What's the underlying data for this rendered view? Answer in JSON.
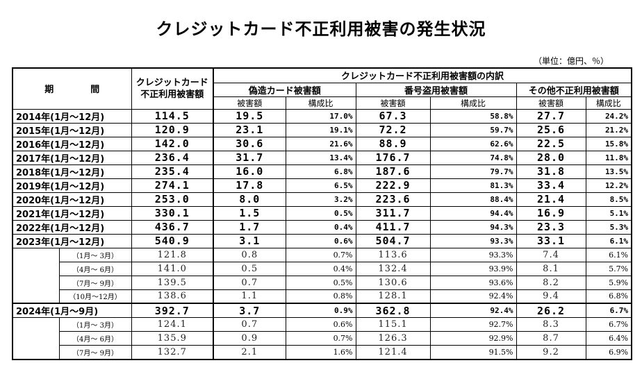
{
  "title": "クレジットカード不正利用被害の発生状況",
  "unit_note": "（単位：億円、％）",
  "headers": {
    "period": "期　間",
    "total": "クレジットカード不正利用被害額",
    "breakdown": "クレジットカード不正利用被害額の内訳",
    "forged": "偽造カード被害額",
    "number_theft": "番号盗用被害額",
    "other": "その他不正利用被害額",
    "damage": "被害額",
    "ratio": "構成比"
  },
  "rows": [
    {
      "type": "year",
      "period": "2014年(1月～12月)",
      "total": "114.5",
      "forged": "19.5",
      "forged_pct": "17.0%",
      "theft": "67.3",
      "theft_pct": "58.8%",
      "other": "27.7",
      "other_pct": "24.2%"
    },
    {
      "type": "year",
      "period": "2015年(1月～12月)",
      "total": "120.9",
      "forged": "23.1",
      "forged_pct": "19.1%",
      "theft": "72.2",
      "theft_pct": "59.7%",
      "other": "25.6",
      "other_pct": "21.2%"
    },
    {
      "type": "year",
      "period": "2016年(1月～12月)",
      "total": "142.0",
      "forged": "30.6",
      "forged_pct": "21.6%",
      "theft": "88.9",
      "theft_pct": "62.6%",
      "other": "22.5",
      "other_pct": "15.8%"
    },
    {
      "type": "year",
      "period": "2017年(1月～12月)",
      "total": "236.4",
      "forged": "31.7",
      "forged_pct": "13.4%",
      "theft": "176.7",
      "theft_pct": "74.8%",
      "other": "28.0",
      "other_pct": "11.8%"
    },
    {
      "type": "year",
      "period": "2018年(1月～12月)",
      "total": "235.4",
      "forged": "16.0",
      "forged_pct": "6.8%",
      "theft": "187.6",
      "theft_pct": "79.7%",
      "other": "31.8",
      "other_pct": "13.5%"
    },
    {
      "type": "year",
      "period": "2019年(1月～12月)",
      "total": "274.1",
      "forged": "17.8",
      "forged_pct": "6.5%",
      "theft": "222.9",
      "theft_pct": "81.3%",
      "other": "33.4",
      "other_pct": "12.2%"
    },
    {
      "type": "year",
      "period": "2020年(1月～12月)",
      "total": "253.0",
      "forged": "8.0",
      "forged_pct": "3.2%",
      "theft": "223.6",
      "theft_pct": "88.4%",
      "other": "21.4",
      "other_pct": "8.5%"
    },
    {
      "type": "year",
      "period": "2021年(1月～12月)",
      "total": "330.1",
      "forged": "1.5",
      "forged_pct": "0.5%",
      "theft": "311.7",
      "theft_pct": "94.4%",
      "other": "16.9",
      "other_pct": "5.1%"
    },
    {
      "type": "year",
      "period": "2022年(1月～12月)",
      "total": "436.7",
      "forged": "1.7",
      "forged_pct": "0.4%",
      "theft": "411.7",
      "theft_pct": "94.3%",
      "other": "23.3",
      "other_pct": "5.3%"
    },
    {
      "type": "year",
      "period": "2023年(1月～12月)",
      "total": "540.9",
      "forged": "3.1",
      "forged_pct": "0.6%",
      "theft": "504.7",
      "theft_pct": "93.3%",
      "other": "33.1",
      "other_pct": "6.1%"
    },
    {
      "type": "quarter",
      "period": "（1月～ 3月）",
      "total": "121.8",
      "forged": "0.8",
      "forged_pct": "0.7%",
      "theft": "113.6",
      "theft_pct": "93.3%",
      "other": "7.4",
      "other_pct": "6.1%"
    },
    {
      "type": "quarter",
      "period": "（4月～ 6月）",
      "total": "141.0",
      "forged": "0.5",
      "forged_pct": "0.4%",
      "theft": "132.4",
      "theft_pct": "93.9%",
      "other": "8.1",
      "other_pct": "5.7%"
    },
    {
      "type": "quarter",
      "period": "（7月～ 9月）",
      "total": "139.5",
      "forged": "0.7",
      "forged_pct": "0.5%",
      "theft": "130.6",
      "theft_pct": "93.6%",
      "other": "8.2",
      "other_pct": "5.9%"
    },
    {
      "type": "quarter",
      "period": "（10月～12月）",
      "total": "138.6",
      "forged": "1.1",
      "forged_pct": "0.8%",
      "theft": "128.1",
      "theft_pct": "92.4%",
      "other": "9.4",
      "other_pct": "6.8%"
    },
    {
      "type": "year",
      "period": "2024年(1月～9月)",
      "total": "392.7",
      "forged": "3.7",
      "forged_pct": "0.9%",
      "theft": "362.8",
      "theft_pct": "92.4%",
      "other": "26.2",
      "other_pct": "6.7%"
    },
    {
      "type": "quarter",
      "period": "（1月～ 3月）",
      "total": "124.1",
      "forged": "0.7",
      "forged_pct": "0.6%",
      "theft": "115.1",
      "theft_pct": "92.7%",
      "other": "8.3",
      "other_pct": "6.7%"
    },
    {
      "type": "quarter",
      "period": "（4月～ 6月）",
      "total": "135.9",
      "forged": "0.9",
      "forged_pct": "0.7%",
      "theft": "126.3",
      "theft_pct": "92.9%",
      "other": "8.7",
      "other_pct": "6.4%"
    },
    {
      "type": "quarter",
      "period": "（7月～ 9月）",
      "total": "132.7",
      "forged": "2.1",
      "forged_pct": "1.6%",
      "theft": "121.4",
      "theft_pct": "91.5%",
      "other": "9.2",
      "other_pct": "6.9%"
    }
  ]
}
